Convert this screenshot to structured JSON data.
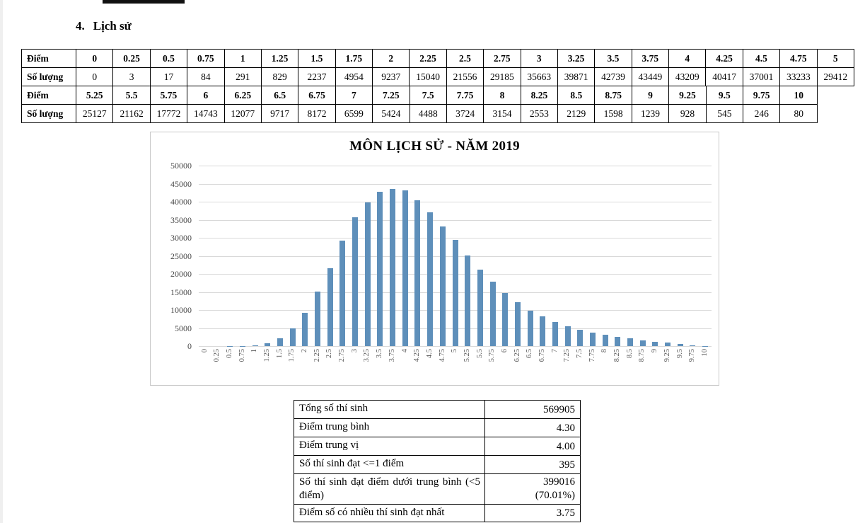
{
  "heading": {
    "number": "4.",
    "text": "Lịch sử"
  },
  "score_table": {
    "score_row_label": "Điểm",
    "count_row_label": "Số lượng",
    "part1": {
      "scores": [
        "0",
        "0.25",
        "0.5",
        "0.75",
        "1",
        "1.25",
        "1.5",
        "1.75",
        "2",
        "2.25",
        "2.5",
        "2.75",
        "3",
        "3.25",
        "3.5",
        "3.75",
        "4",
        "4.25",
        "4.5",
        "4.75",
        "5"
      ],
      "counts": [
        "0",
        "3",
        "17",
        "84",
        "291",
        "829",
        "2237",
        "4954",
        "9237",
        "15040",
        "21556",
        "29185",
        "35663",
        "39871",
        "42739",
        "43449",
        "43209",
        "40417",
        "37001",
        "33233",
        "29412"
      ]
    },
    "part2": {
      "scores": [
        "5.25",
        "5.5",
        "5.75",
        "6",
        "6.25",
        "6.5",
        "6.75",
        "7",
        "7.25",
        "7.5",
        "7.75",
        "8",
        "8.25",
        "8.5",
        "8.75",
        "9",
        "9.25",
        "9.5",
        "9.75",
        "10"
      ],
      "counts": [
        "25127",
        "21162",
        "17772",
        "14743",
        "12077",
        "9717",
        "8172",
        "6599",
        "5424",
        "4488",
        "3724",
        "3154",
        "2553",
        "2129",
        "1598",
        "1239",
        "928",
        "545",
        "246",
        "80"
      ]
    }
  },
  "chart_data": {
    "type": "bar",
    "title": "MÔN LỊCH SỬ - NĂM 2019",
    "categories": [
      "0",
      "0.25",
      "0.5",
      "0.75",
      "1",
      "1.25",
      "1.5",
      "1.75",
      "2",
      "2.25",
      "2.5",
      "2.75",
      "3",
      "3.25",
      "3.5",
      "3.75",
      "4",
      "4.25",
      "4.5",
      "4.75",
      "5",
      "5.25",
      "5.5",
      "5.75",
      "6",
      "6.25",
      "6.5",
      "6.75",
      "7",
      "7.25",
      "7.5",
      "7.75",
      "8",
      "8.25",
      "8.5",
      "8.75",
      "9",
      "9.25",
      "9.5",
      "9.75",
      "10"
    ],
    "values": [
      0,
      3,
      17,
      84,
      291,
      829,
      2237,
      4954,
      9237,
      15040,
      21556,
      29185,
      35663,
      39871,
      42739,
      43449,
      43209,
      40417,
      37001,
      33233,
      29412,
      25127,
      21162,
      17772,
      14743,
      12077,
      9717,
      8172,
      6599,
      5424,
      4488,
      3724,
      3154,
      2553,
      2129,
      1598,
      1239,
      928,
      545,
      246,
      80
    ],
    "xlabel": "",
    "ylabel": "",
    "ylim": [
      0,
      50000
    ],
    "ytick_step": 5000,
    "grid": true,
    "legend_position": "none",
    "bar_color": "#5e8fba",
    "gridline_color": "#d9d9d9",
    "axis_label_color": "#595959"
  },
  "summary_table": {
    "rows": [
      {
        "label": "Tổng số thí sinh",
        "value": "569905"
      },
      {
        "label": "Điểm trung bình",
        "value": "4.30"
      },
      {
        "label": "Điểm trung vị",
        "value": "4.00"
      },
      {
        "label": "Số thí sinh đạt <=1 điểm",
        "value": "395"
      },
      {
        "label": "Số thí sinh đạt điểm dưới trung bình (<5 điểm)",
        "value": "399016\n(70.01%)"
      },
      {
        "label": "Điểm số có nhiều thí sinh đạt nhất",
        "value": "3.75"
      }
    ]
  }
}
